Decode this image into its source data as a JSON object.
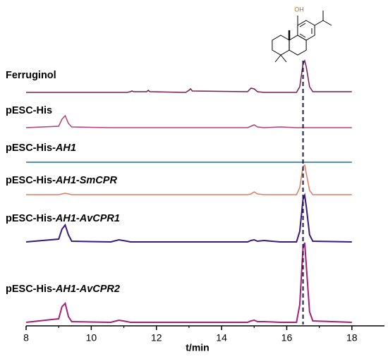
{
  "chart_data": {
    "type": "line",
    "x_label": "t/min",
    "xlim": [
      8,
      19
    ],
    "xticks": [
      8,
      10,
      12,
      14,
      16,
      18
    ],
    "xminorticks": [
      9,
      11,
      13,
      15,
      17
    ],
    "reference_line_x": 16.5,
    "structure_label": "OH",
    "x": [
      8,
      9.0,
      9.1,
      9.2,
      9.3,
      9.4,
      10.6,
      10.85,
      11.1,
      11.2,
      11.25,
      11.3,
      11.7,
      11.75,
      11.8,
      12.9,
      13.0,
      13.05,
      13.1,
      14.8,
      14.9,
      15.0,
      15.1,
      15.3,
      15.8,
      16.3,
      16.4,
      16.5,
      16.55,
      16.6,
      16.7,
      16.8,
      18
    ],
    "series": [
      {
        "name": [
          {
            "text": "Ferruginol"
          }
        ],
        "color": "#7b1a4e",
        "values": [
          0,
          0,
          0,
          0,
          0,
          0,
          0,
          0,
          0,
          1,
          2,
          1,
          1,
          3,
          1,
          0,
          3,
          5,
          2,
          1,
          6,
          5,
          1,
          0,
          0,
          0,
          8,
          40,
          45,
          36,
          8,
          1,
          1
        ]
      },
      {
        "name": [
          {
            "text": "pESC-His"
          }
        ],
        "color": "#b0407a",
        "values": [
          0,
          2,
          12,
          17,
          6,
          1,
          0,
          0,
          0,
          0,
          0,
          0,
          0,
          0,
          0,
          0,
          0,
          0,
          0,
          0,
          2,
          4,
          1,
          0,
          1,
          0,
          0,
          0,
          0,
          0,
          0,
          0,
          0
        ]
      },
      {
        "name": [
          {
            "text": "pESC-His-"
          },
          {
            "text": "AH1",
            "italic": true
          }
        ],
        "color": "#1f6fa8",
        "values": [
          0,
          0,
          0,
          0,
          0,
          0,
          0,
          0,
          0,
          0,
          0,
          0,
          0,
          0,
          0,
          0,
          0,
          0,
          0,
          0,
          0,
          0,
          0,
          0,
          0,
          0,
          0,
          0,
          0,
          0,
          0,
          0,
          0
        ]
      },
      {
        "name": [
          {
            "text": "pESC-His-"
          },
          {
            "text": "AH1-SmCPR",
            "italic": true
          }
        ],
        "color": "#e07a5f",
        "values": [
          0,
          0,
          1,
          2,
          1,
          0,
          0,
          0,
          0,
          0,
          0,
          0,
          0,
          0,
          0,
          0,
          0,
          0,
          0,
          0,
          1,
          4,
          1,
          0,
          0,
          0,
          10,
          40,
          42,
          30,
          6,
          0,
          0
        ]
      },
      {
        "name": [
          {
            "text": "pESC-His-"
          },
          {
            "text": "AH1-AvCPR1",
            "italic": true
          }
        ],
        "color": "#3a1a7a",
        "values": [
          0,
          4,
          18,
          24,
          10,
          1,
          0,
          3,
          1,
          0,
          0,
          0,
          0,
          0,
          0,
          0,
          0,
          0,
          0,
          0,
          2,
          3,
          1,
          2,
          0,
          0,
          15,
          60,
          66,
          50,
          10,
          1,
          0
        ]
      },
      {
        "name": [
          {
            "text": "pESC-His-"
          },
          {
            "text": "AH1-AvCPR2",
            "italic": true
          }
        ],
        "color": "#a0207a",
        "values": [
          0,
          5,
          22,
          27,
          8,
          1,
          0,
          3,
          1,
          0,
          0,
          0,
          0,
          0,
          0,
          0,
          0,
          0,
          0,
          0,
          2,
          3,
          1,
          1,
          0,
          0,
          25,
          105,
          113,
          80,
          15,
          2,
          0
        ]
      }
    ]
  }
}
